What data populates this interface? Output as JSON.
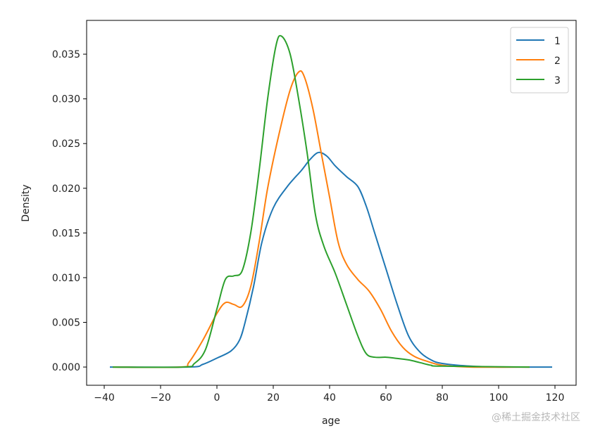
{
  "chart_data": {
    "type": "line",
    "title": "",
    "xlabel": "age",
    "ylabel": "Density",
    "xlim": [
      -46.25,
      127.5
    ],
    "ylim": [
      -0.00204,
      0.03878
    ],
    "xticks": [
      -40,
      -20,
      0,
      20,
      40,
      60,
      80,
      100,
      120
    ],
    "xtick_labels": [
      "−40",
      "−20",
      "0",
      "20",
      "40",
      "60",
      "80",
      "100",
      "120"
    ],
    "yticks": [
      0,
      0.005,
      0.01,
      0.015,
      0.02,
      0.025,
      0.03,
      0.035
    ],
    "ytick_labels": [
      "0.000",
      "0.005",
      "0.010",
      "0.015",
      "0.020",
      "0.025",
      "0.030",
      "0.035"
    ],
    "grid": false,
    "legend_position": "top-right",
    "series": [
      {
        "name": "1",
        "color": "#1f77b4",
        "x": [
          -38,
          -10,
          -5,
          0,
          5,
          8,
          10,
          13,
          16,
          20,
          25,
          30,
          33,
          36,
          39,
          42,
          46,
          50,
          53,
          56,
          60,
          64,
          68,
          72,
          76,
          80,
          90,
          100,
          119
        ],
        "y": [
          0,
          0,
          0.0003,
          0.001,
          0.0018,
          0.003,
          0.005,
          0.009,
          0.014,
          0.0178,
          0.0202,
          0.022,
          0.0232,
          0.024,
          0.0236,
          0.0225,
          0.0213,
          0.0202,
          0.018,
          0.015,
          0.011,
          0.007,
          0.0035,
          0.0017,
          0.0008,
          0.0004,
          0.0001,
          0,
          0
        ]
      },
      {
        "name": "2",
        "color": "#ff7f0e",
        "x": [
          -37,
          -13,
          -10,
          -5,
          0,
          3,
          6,
          9,
          12,
          15,
          18,
          22,
          26,
          29,
          31,
          34,
          37,
          40,
          43,
          46,
          50,
          54,
          58,
          62,
          66,
          70,
          75,
          80,
          90,
          111
        ],
        "y": [
          0,
          0,
          0.0005,
          0.003,
          0.006,
          0.0072,
          0.007,
          0.0068,
          0.009,
          0.014,
          0.02,
          0.026,
          0.031,
          0.033,
          0.0325,
          0.029,
          0.024,
          0.019,
          0.014,
          0.0115,
          0.0098,
          0.0085,
          0.0065,
          0.004,
          0.0022,
          0.0012,
          0.0006,
          0.0002,
          0,
          0
        ]
      },
      {
        "name": "3",
        "color": "#2ca02c",
        "x": [
          -37,
          -12,
          -8,
          -4,
          0,
          3,
          6,
          9,
          12,
          15,
          18,
          21,
          23,
          26,
          29,
          32,
          35,
          38,
          42,
          46,
          50,
          53,
          56,
          60,
          63,
          68,
          72,
          76,
          80,
          111
        ],
        "y": [
          0,
          0,
          0.0004,
          0.002,
          0.0065,
          0.0098,
          0.0102,
          0.0108,
          0.015,
          0.022,
          0.03,
          0.036,
          0.037,
          0.035,
          0.03,
          0.024,
          0.017,
          0.0135,
          0.0105,
          0.007,
          0.0035,
          0.0015,
          0.0011,
          0.0011,
          0.001,
          0.0008,
          0.0005,
          0.0002,
          0.0001,
          0
        ]
      }
    ]
  },
  "watermark": "@稀土掘金技术社区"
}
